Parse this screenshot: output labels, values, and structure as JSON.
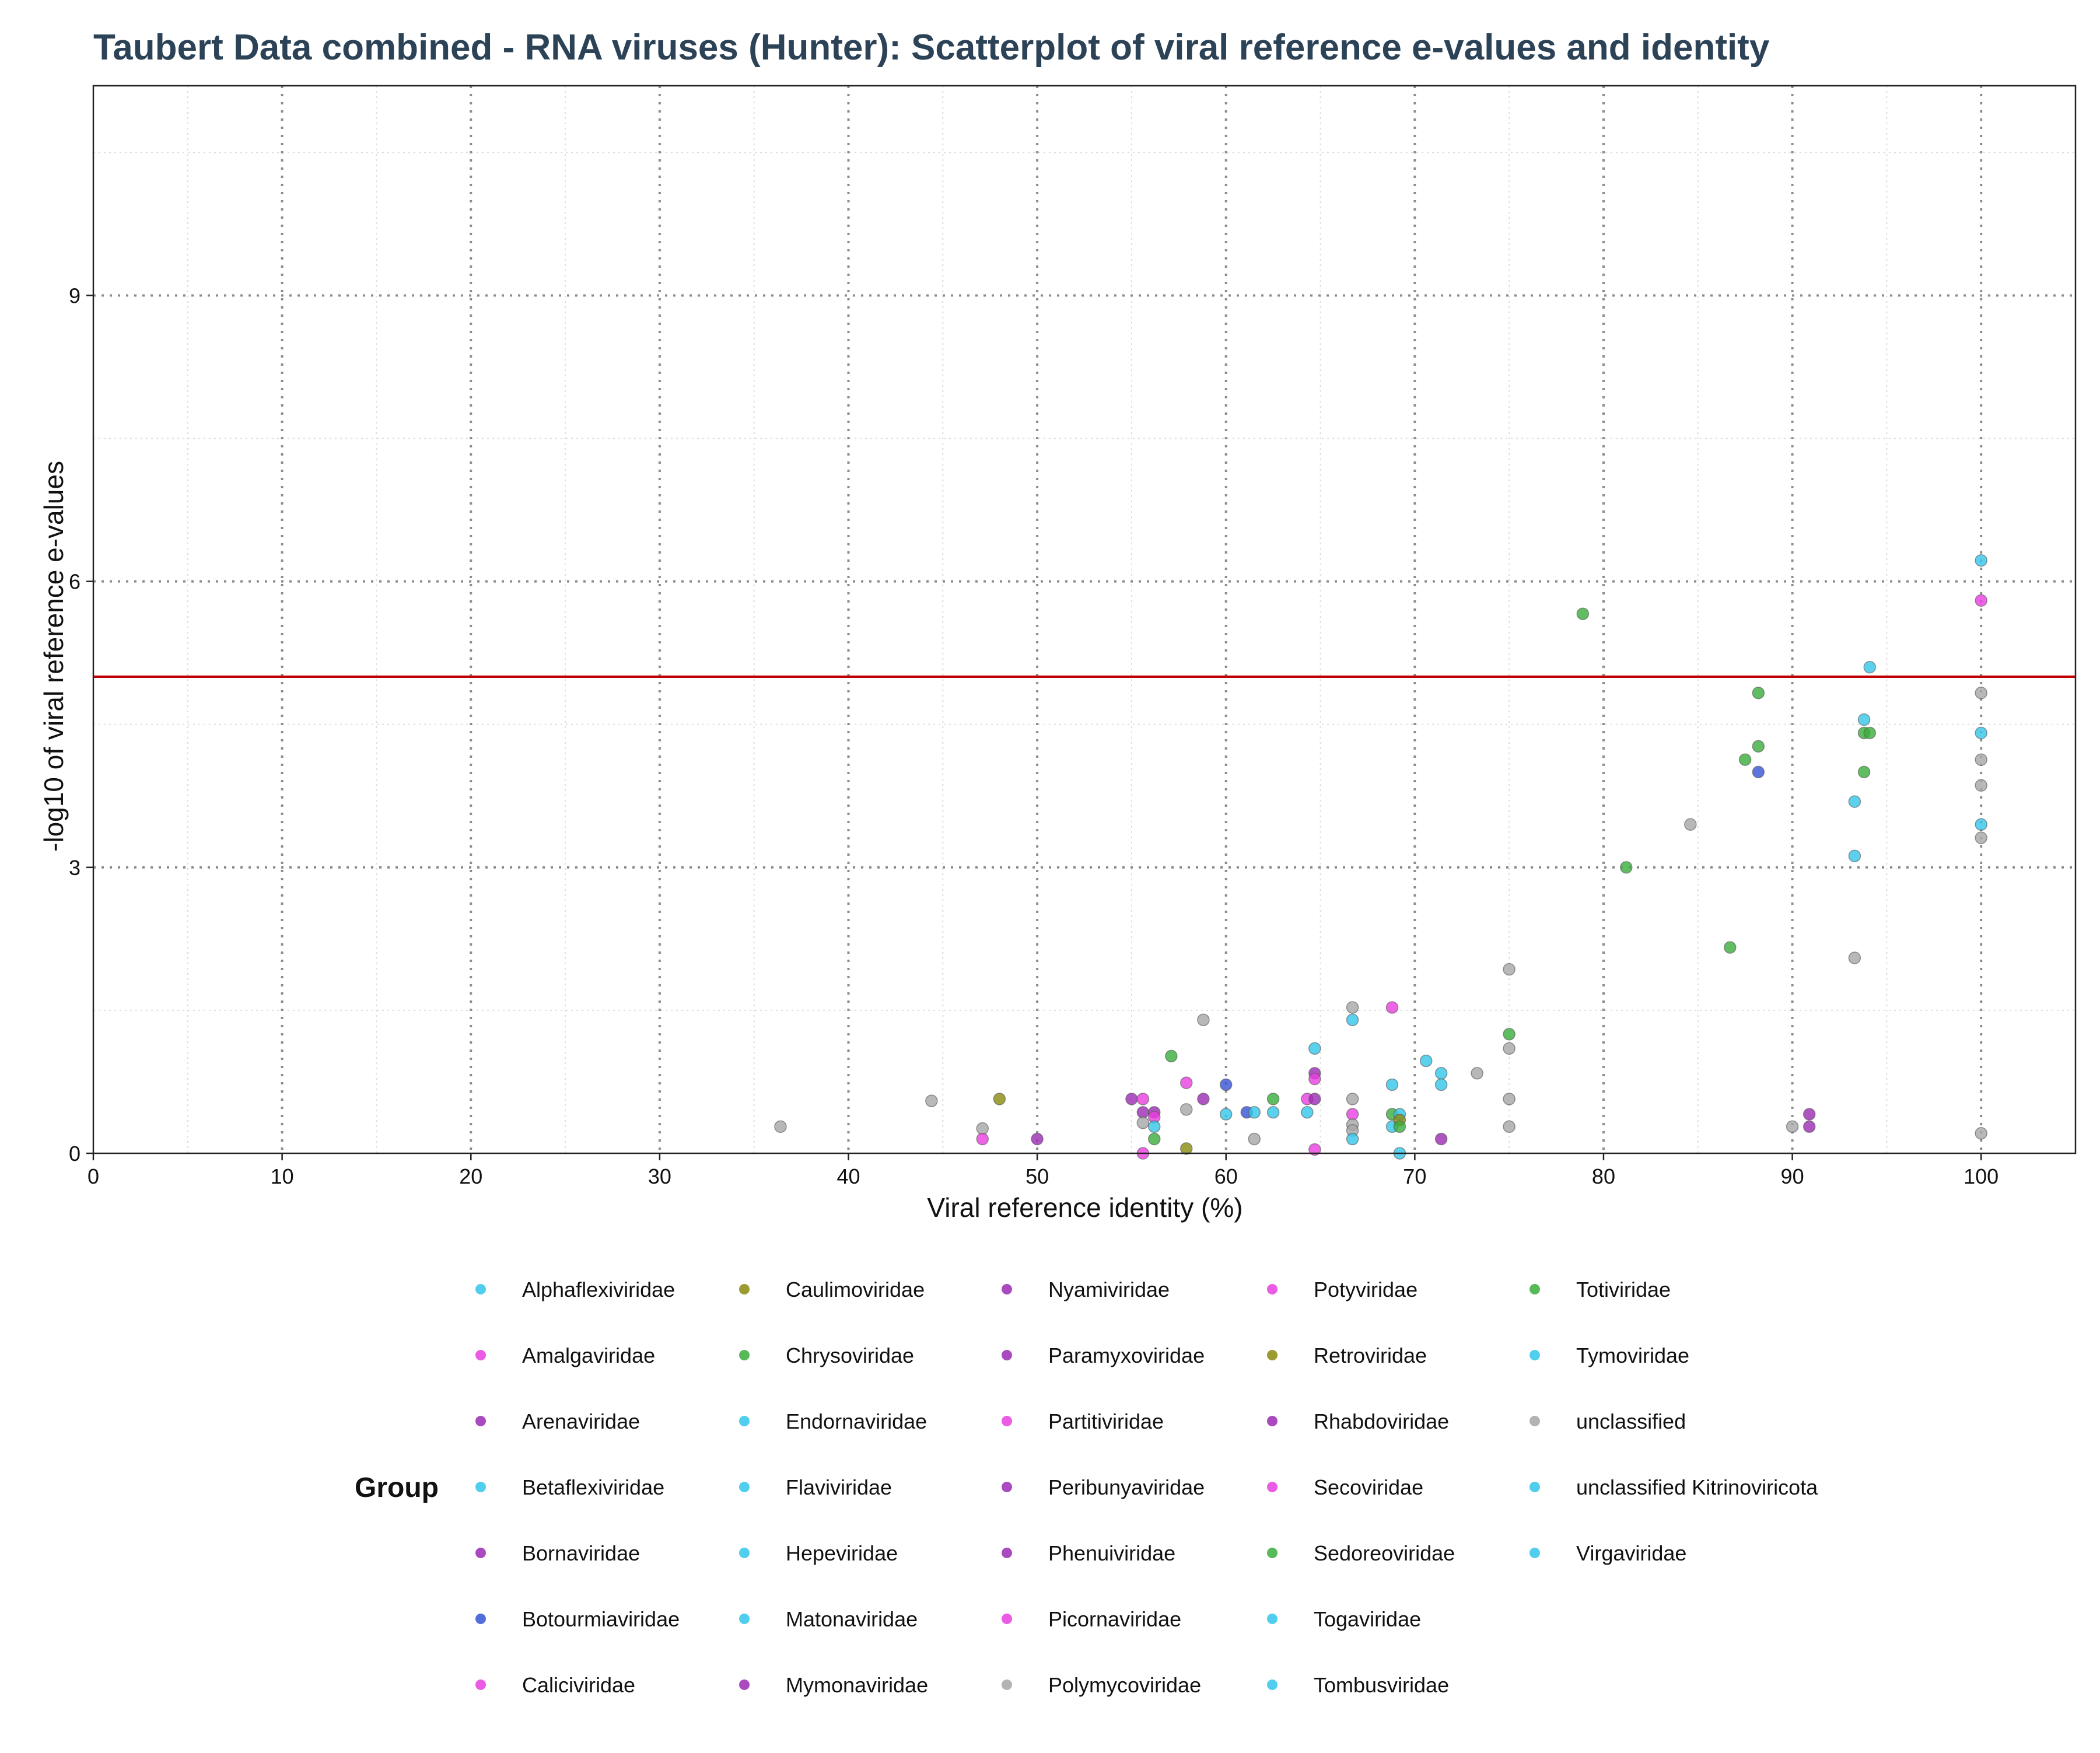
{
  "chart_data": {
    "type": "scatter",
    "title": "Taubert Data combined - RNA viruses (Hunter): Scatterplot of viral reference e-values and identity",
    "xlabel": "Viral reference identity (%)",
    "ylabel": "-log10 of viral reference e-values",
    "xlim": [
      0,
      105
    ],
    "ylim": [
      0,
      11.2
    ],
    "xticks": [
      0,
      10,
      20,
      30,
      40,
      50,
      60,
      70,
      80,
      90,
      100
    ],
    "yticks": [
      0,
      3,
      6,
      9
    ],
    "threshold_y": 5,
    "threshold_color": "#c00000",
    "grid": true,
    "legend_position": "bottom",
    "legend_title": "Group",
    "title_color": "#2c4257",
    "groups": [
      {
        "name": "Alphaflexiviridae",
        "color": "#33c6ea"
      },
      {
        "name": "Amalgaviridae",
        "color": "#e83fe0"
      },
      {
        "name": "Arenaviridae",
        "color": "#9a2bb3"
      },
      {
        "name": "Betaflexiviridae",
        "color": "#33c6ea"
      },
      {
        "name": "Bornaviridae",
        "color": "#9a2bb3"
      },
      {
        "name": "Botourmiaviridae",
        "color": "#3553d4"
      },
      {
        "name": "Caliciviridae",
        "color": "#e83fe0"
      },
      {
        "name": "Caulimoviridae",
        "color": "#8a8a0e"
      },
      {
        "name": "Chrysoviridae",
        "color": "#3aad3a"
      },
      {
        "name": "Endornaviridae",
        "color": "#33c6ea"
      },
      {
        "name": "Flaviviridae",
        "color": "#33c6ea"
      },
      {
        "name": "Hepeviridae",
        "color": "#33c6ea"
      },
      {
        "name": "Matonaviridae",
        "color": "#33c6ea"
      },
      {
        "name": "Mymonaviridae",
        "color": "#9a2bb3"
      },
      {
        "name": "Nyamiviridae",
        "color": "#9a2bb3"
      },
      {
        "name": "Paramyxoviridae",
        "color": "#9a2bb3"
      },
      {
        "name": "Partitiviridae",
        "color": "#e83fe0"
      },
      {
        "name": "Peribunyaviridae",
        "color": "#9a2bb3"
      },
      {
        "name": "Phenuiviridae",
        "color": "#9a2bb3"
      },
      {
        "name": "Picornaviridae",
        "color": "#e83fe0"
      },
      {
        "name": "Polymycoviridae",
        "color": "#a6a6a6"
      },
      {
        "name": "Potyviridae",
        "color": "#e83fe0"
      },
      {
        "name": "Retroviridae",
        "color": "#8a8a0e"
      },
      {
        "name": "Rhabdoviridae",
        "color": "#9a2bb3"
      },
      {
        "name": "Secoviridae",
        "color": "#e83fe0"
      },
      {
        "name": "Sedoreoviridae",
        "color": "#3aad3a"
      },
      {
        "name": "Togaviridae",
        "color": "#33c6ea"
      },
      {
        "name": "Tombusviridae",
        "color": "#33c6ea"
      },
      {
        "name": "Totiviridae",
        "color": "#3aad3a"
      },
      {
        "name": "Tymoviridae",
        "color": "#33c6ea"
      },
      {
        "name": "unclassified",
        "color": "#a6a6a6"
      },
      {
        "name": "unclassified Kitrinoviricota",
        "color": "#33c6ea"
      },
      {
        "name": "Virgaviridae",
        "color": "#33c6ea"
      }
    ],
    "points": [
      {
        "x": 36.4,
        "y": 0.28,
        "color": "#a6a6a6"
      },
      {
        "x": 44.4,
        "y": 0.55,
        "color": "#a6a6a6"
      },
      {
        "x": 47.1,
        "y": 0.26,
        "color": "#a6a6a6"
      },
      {
        "x": 47.1,
        "y": 0.15,
        "color": "#e83fe0"
      },
      {
        "x": 48.0,
        "y": 0.57,
        "color": "#8a8a0e"
      },
      {
        "x": 50.0,
        "y": 0.15,
        "color": "#9a2bb3"
      },
      {
        "x": 55.0,
        "y": 0.57,
        "color": "#9a2bb3"
      },
      {
        "x": 55.6,
        "y": 0.57,
        "color": "#e83fe0"
      },
      {
        "x": 55.6,
        "y": 0.43,
        "color": "#9a2bb3"
      },
      {
        "x": 55.6,
        "y": 0.32,
        "color": "#a6a6a6"
      },
      {
        "x": 55.6,
        "y": 0.0,
        "color": "#e83fe0"
      },
      {
        "x": 56.2,
        "y": 0.43,
        "color": "#9a2bb3"
      },
      {
        "x": 56.2,
        "y": 0.38,
        "color": "#e83fe0"
      },
      {
        "x": 56.2,
        "y": 0.28,
        "color": "#33c6ea"
      },
      {
        "x": 56.2,
        "y": 0.15,
        "color": "#3aad3a"
      },
      {
        "x": 57.1,
        "y": 1.02,
        "color": "#3aad3a"
      },
      {
        "x": 57.9,
        "y": 0.74,
        "color": "#e83fe0"
      },
      {
        "x": 57.9,
        "y": 0.46,
        "color": "#a6a6a6"
      },
      {
        "x": 57.9,
        "y": 0.05,
        "color": "#8a8a0e"
      },
      {
        "x": 58.8,
        "y": 1.4,
        "color": "#a6a6a6"
      },
      {
        "x": 58.8,
        "y": 0.57,
        "color": "#9a2bb3"
      },
      {
        "x": 60.0,
        "y": 0.72,
        "color": "#3553d4"
      },
      {
        "x": 60.0,
        "y": 0.41,
        "color": "#33c6ea"
      },
      {
        "x": 61.1,
        "y": 0.43,
        "color": "#3553d4"
      },
      {
        "x": 61.5,
        "y": 0.43,
        "color": "#33c6ea"
      },
      {
        "x": 61.5,
        "y": 0.15,
        "color": "#a6a6a6"
      },
      {
        "x": 62.5,
        "y": 0.57,
        "color": "#3aad3a"
      },
      {
        "x": 62.5,
        "y": 0.43,
        "color": "#33c6ea"
      },
      {
        "x": 64.3,
        "y": 0.57,
        "color": "#e83fe0"
      },
      {
        "x": 64.3,
        "y": 0.43,
        "color": "#33c6ea"
      },
      {
        "x": 64.7,
        "y": 1.1,
        "color": "#33c6ea"
      },
      {
        "x": 64.7,
        "y": 0.84,
        "color": "#9a2bb3"
      },
      {
        "x": 64.7,
        "y": 0.78,
        "color": "#e83fe0"
      },
      {
        "x": 64.7,
        "y": 0.57,
        "color": "#9a2bb3"
      },
      {
        "x": 64.7,
        "y": 0.04,
        "color": "#e83fe0"
      },
      {
        "x": 66.7,
        "y": 1.53,
        "color": "#a6a6a6"
      },
      {
        "x": 66.7,
        "y": 1.4,
        "color": "#33c6ea"
      },
      {
        "x": 66.7,
        "y": 0.57,
        "color": "#a6a6a6"
      },
      {
        "x": 66.7,
        "y": 0.41,
        "color": "#e83fe0"
      },
      {
        "x": 66.7,
        "y": 0.3,
        "color": "#a6a6a6"
      },
      {
        "x": 66.7,
        "y": 0.24,
        "color": "#a6a6a6"
      },
      {
        "x": 66.7,
        "y": 0.15,
        "color": "#33c6ea"
      },
      {
        "x": 68.8,
        "y": 1.53,
        "color": "#e83fe0"
      },
      {
        "x": 68.8,
        "y": 0.72,
        "color": "#33c6ea"
      },
      {
        "x": 68.8,
        "y": 0.41,
        "color": "#3aad3a"
      },
      {
        "x": 68.8,
        "y": 0.28,
        "color": "#33c6ea"
      },
      {
        "x": 69.2,
        "y": 0.41,
        "color": "#33c6ea"
      },
      {
        "x": 69.2,
        "y": 0.35,
        "color": "#8a8a0e"
      },
      {
        "x": 69.2,
        "y": 0.28,
        "color": "#3aad3a"
      },
      {
        "x": 69.2,
        "y": 0.0,
        "color": "#33c6ea"
      },
      {
        "x": 70.6,
        "y": 0.97,
        "color": "#33c6ea"
      },
      {
        "x": 71.4,
        "y": 0.84,
        "color": "#33c6ea"
      },
      {
        "x": 71.4,
        "y": 0.72,
        "color": "#33c6ea"
      },
      {
        "x": 71.4,
        "y": 0.15,
        "color": "#9a2bb3"
      },
      {
        "x": 73.3,
        "y": 0.84,
        "color": "#a6a6a6"
      },
      {
        "x": 75.0,
        "y": 1.93,
        "color": "#a6a6a6"
      },
      {
        "x": 75.0,
        "y": 1.25,
        "color": "#3aad3a"
      },
      {
        "x": 75.0,
        "y": 1.1,
        "color": "#a6a6a6"
      },
      {
        "x": 75.0,
        "y": 0.57,
        "color": "#a6a6a6"
      },
      {
        "x": 75.0,
        "y": 0.28,
        "color": "#a6a6a6"
      },
      {
        "x": 78.9,
        "y": 5.66,
        "color": "#3aad3a"
      },
      {
        "x": 81.2,
        "y": 3.0,
        "color": "#3aad3a"
      },
      {
        "x": 84.6,
        "y": 3.45,
        "color": "#a6a6a6"
      },
      {
        "x": 86.7,
        "y": 2.16,
        "color": "#3aad3a"
      },
      {
        "x": 87.5,
        "y": 4.13,
        "color": "#3aad3a"
      },
      {
        "x": 88.2,
        "y": 4.83,
        "color": "#3aad3a"
      },
      {
        "x": 88.2,
        "y": 4.27,
        "color": "#3aad3a"
      },
      {
        "x": 88.2,
        "y": 4.0,
        "color": "#3553d4"
      },
      {
        "x": 90.0,
        "y": 0.28,
        "color": "#a6a6a6"
      },
      {
        "x": 90.9,
        "y": 0.41,
        "color": "#9a2bb3"
      },
      {
        "x": 90.9,
        "y": 0.28,
        "color": "#9a2bb3"
      },
      {
        "x": 93.3,
        "y": 3.69,
        "color": "#33c6ea"
      },
      {
        "x": 93.3,
        "y": 3.12,
        "color": "#33c6ea"
      },
      {
        "x": 93.3,
        "y": 2.05,
        "color": "#a6a6a6"
      },
      {
        "x": 93.8,
        "y": 4.55,
        "color": "#33c6ea"
      },
      {
        "x": 93.8,
        "y": 4.41,
        "color": "#3aad3a"
      },
      {
        "x": 93.8,
        "y": 4.0,
        "color": "#3aad3a"
      },
      {
        "x": 94.1,
        "y": 5.1,
        "color": "#33c6ea"
      },
      {
        "x": 94.1,
        "y": 4.41,
        "color": "#3aad3a"
      },
      {
        "x": 100.0,
        "y": 6.22,
        "color": "#33c6ea"
      },
      {
        "x": 100.0,
        "y": 5.8,
        "color": "#e83fe0"
      },
      {
        "x": 100.0,
        "y": 4.83,
        "color": "#a6a6a6"
      },
      {
        "x": 100.0,
        "y": 4.41,
        "color": "#33c6ea"
      },
      {
        "x": 100.0,
        "y": 4.13,
        "color": "#a6a6a6"
      },
      {
        "x": 100.0,
        "y": 3.86,
        "color": "#a6a6a6"
      },
      {
        "x": 100.0,
        "y": 3.45,
        "color": "#33c6ea"
      },
      {
        "x": 100.0,
        "y": 3.31,
        "color": "#a6a6a6"
      },
      {
        "x": 100.0,
        "y": 0.21,
        "color": "#a6a6a6"
      }
    ]
  }
}
